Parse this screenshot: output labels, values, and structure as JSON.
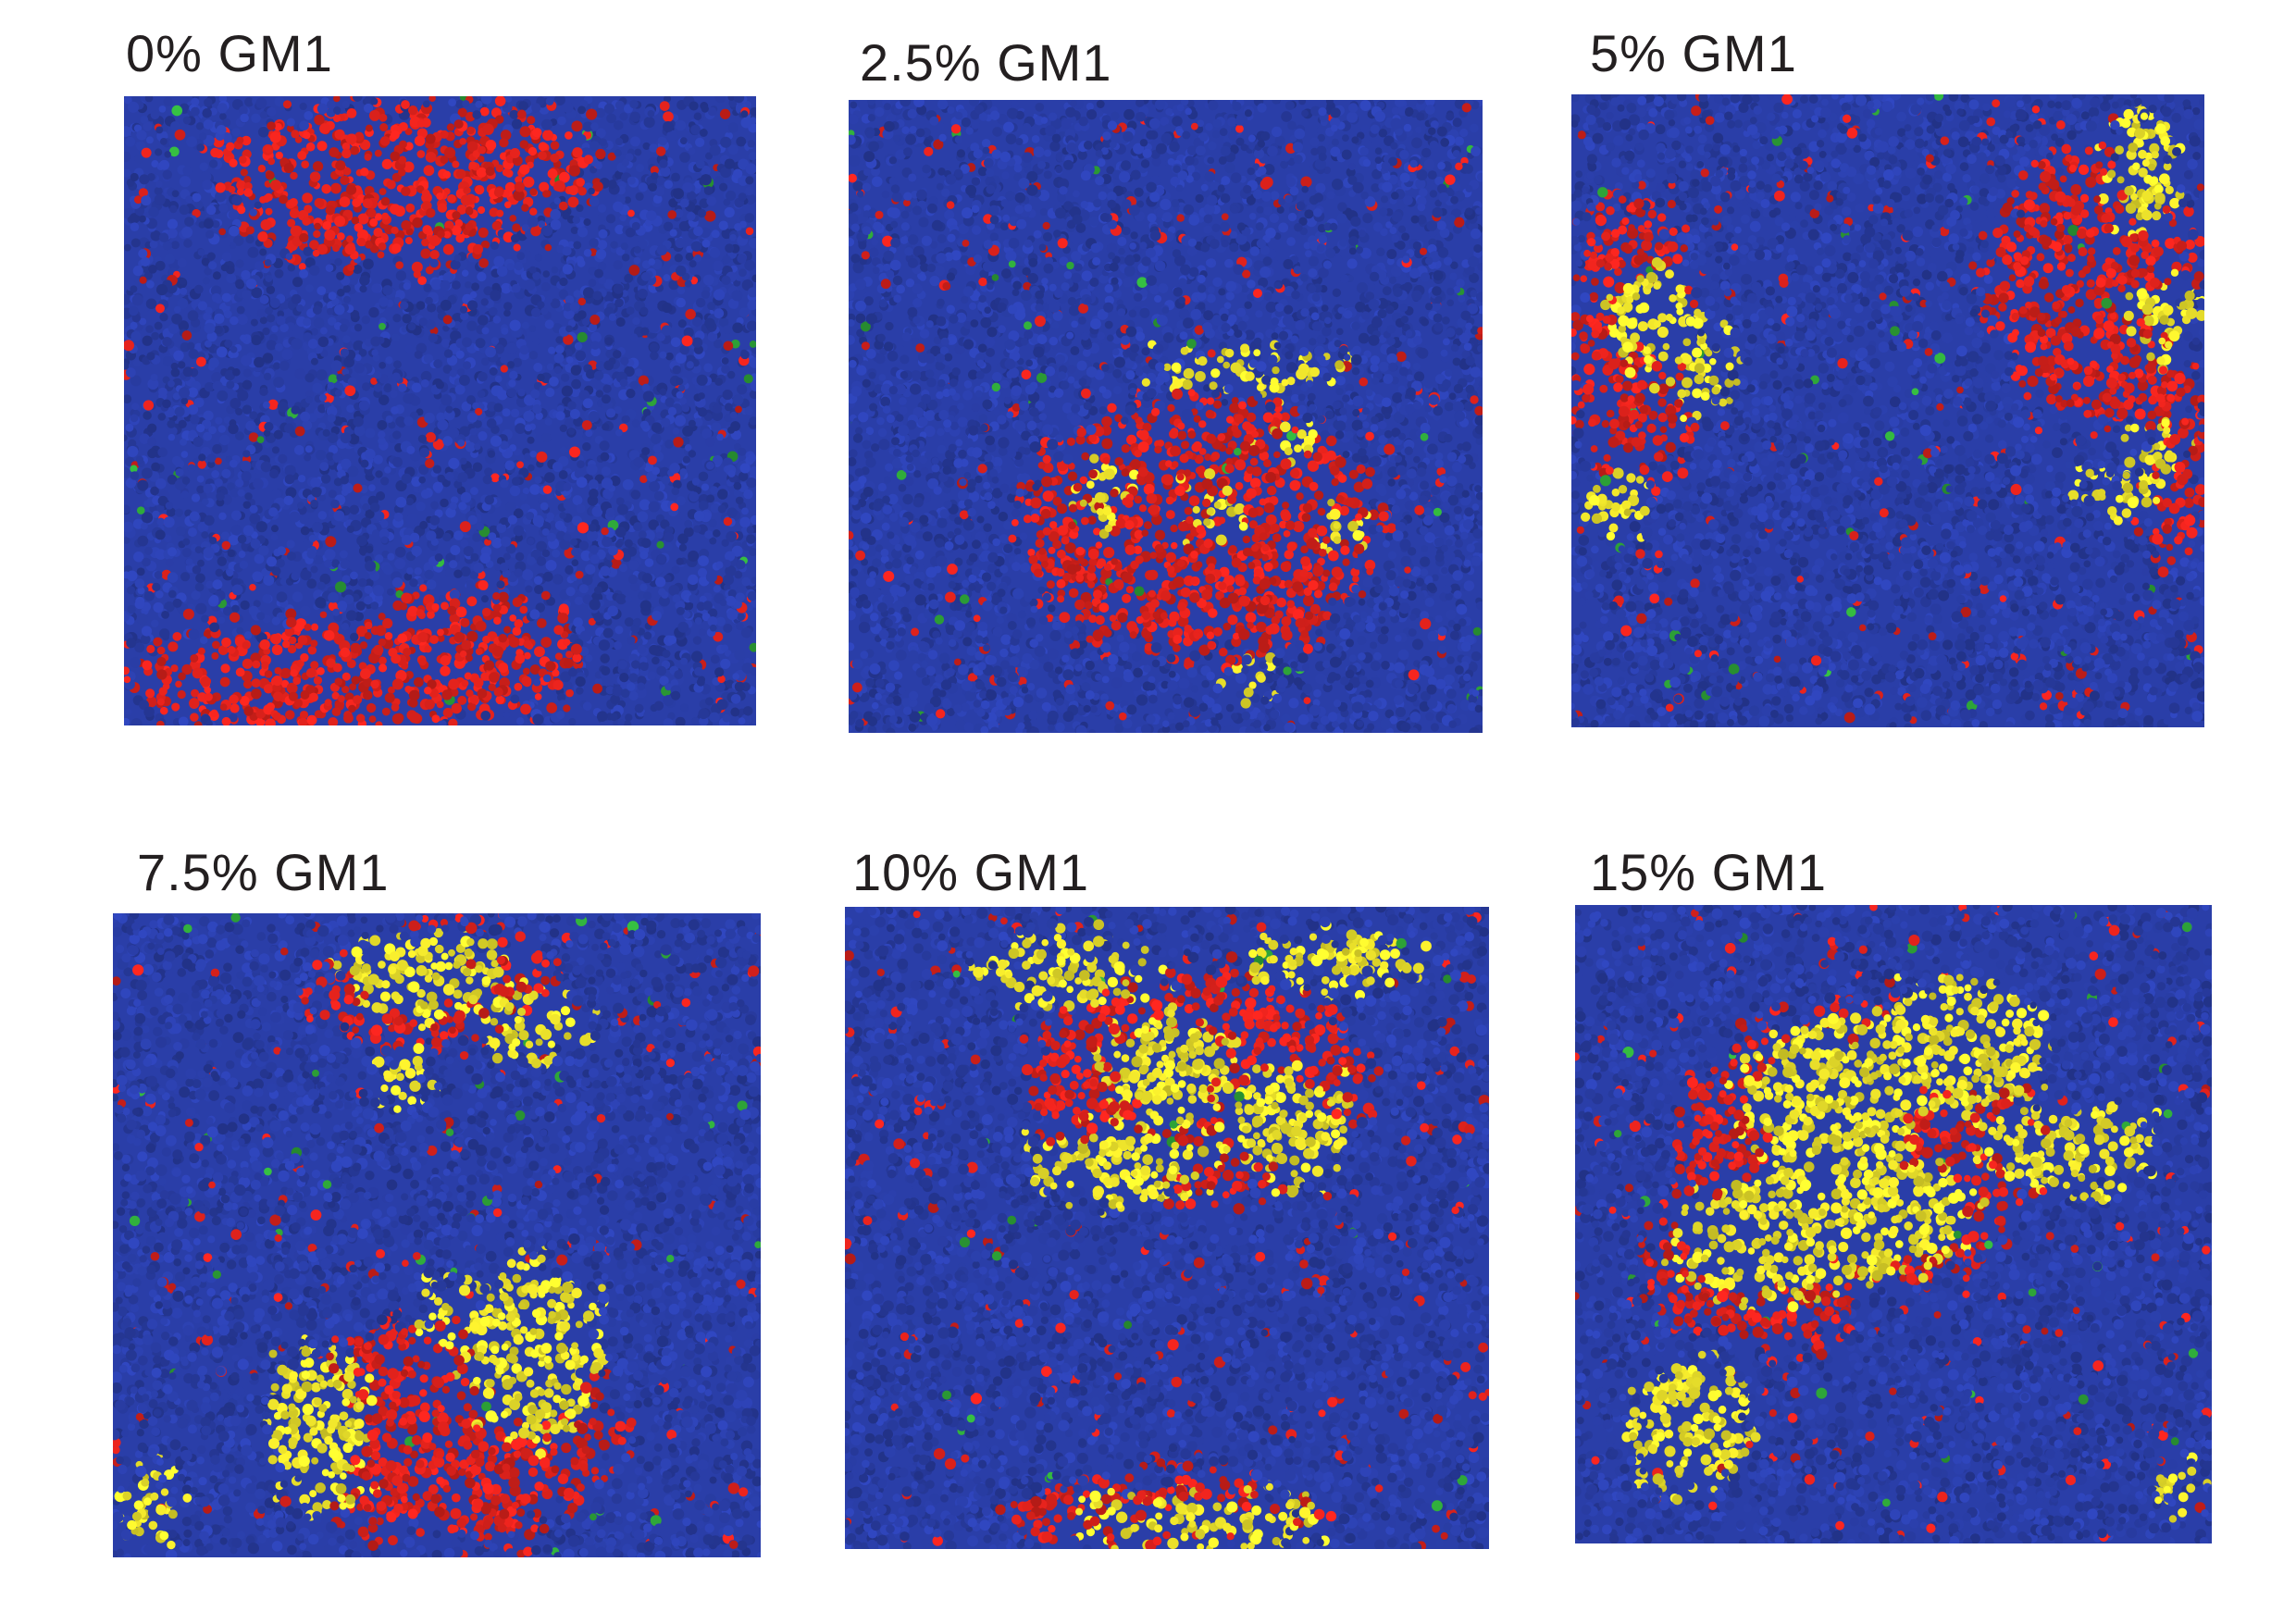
{
  "figure": {
    "colors": {
      "background_lipid": "#2a3ea8",
      "ordered_lipid": "#e0221c",
      "gm1": "#f2e82c",
      "minor_lipid": "#2fa83a"
    },
    "panels": [
      {
        "label": "0% GM1"
      },
      {
        "label": "2.5% GM1"
      },
      {
        "label": "5% GM1"
      },
      {
        "label": "7.5% GM1"
      },
      {
        "label": "10% GM1"
      },
      {
        "label": "15% GM1"
      }
    ]
  }
}
